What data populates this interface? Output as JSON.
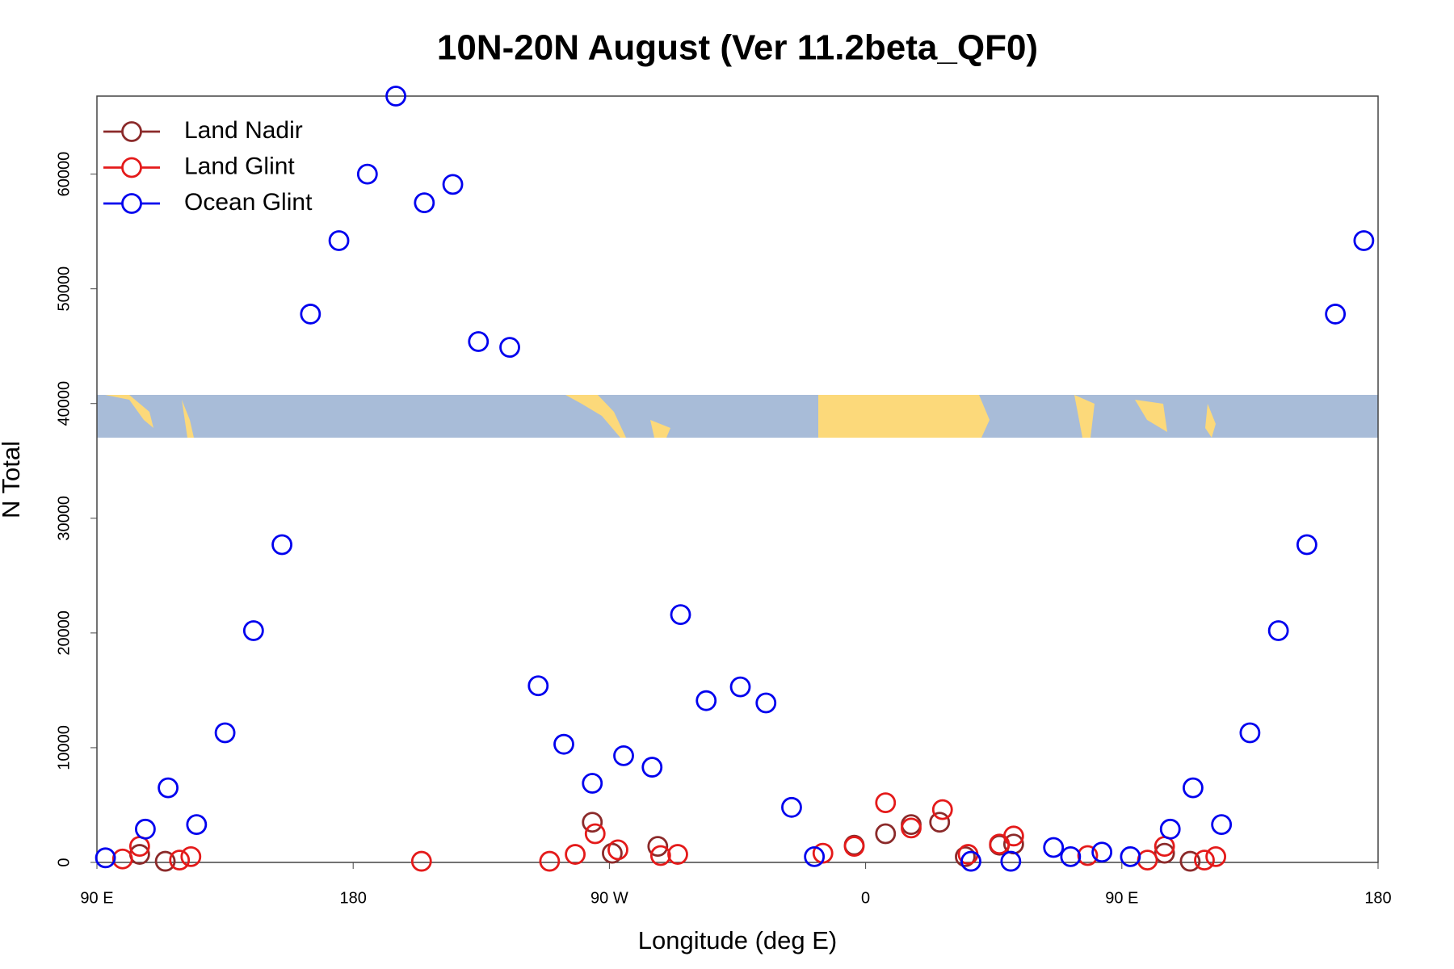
{
  "chart_data": {
    "type": "scatter",
    "title": "10N-20N August (Ver 11.2beta_QF0)",
    "x_label": "Longitude (deg E)",
    "y_label": "N Total",
    "xlim": [
      90,
      540
    ],
    "ylim": [
      0,
      66800
    ],
    "xticks": [
      {
        "value": 90,
        "label": "90 E"
      },
      180,
      {
        "value": 270,
        "label": "90 W"
      },
      {
        "value": 360,
        "label": "0"
      },
      {
        "value": 450,
        "label": "90 E"
      },
      {
        "value": 540,
        "label": "180"
      }
    ],
    "yticks": [
      0,
      10000,
      20000,
      30000,
      40000,
      50000,
      60000
    ],
    "legend": "top-left",
    "series": [
      {
        "name": "Land Nadir",
        "color": "#8b2a2a",
        "x": [
          105,
          114,
          264,
          271,
          287,
          356,
          367,
          376,
          386,
          395,
          407,
          412,
          465,
          474
        ],
        "values": [
          700,
          100,
          3500,
          800,
          1400,
          1500,
          2500,
          3300,
          3500,
          500,
          1500,
          1600,
          800,
          100
        ]
      },
      {
        "name": "Land Glint",
        "color": "#e41a1a",
        "x": [
          99,
          105,
          119,
          123,
          204,
          249,
          258,
          265,
          273,
          288,
          294,
          345,
          356,
          367,
          376,
          387,
          396,
          407,
          412,
          438,
          459,
          465,
          479,
          483
        ],
        "values": [
          300,
          1400,
          200,
          500,
          100,
          100,
          700,
          2500,
          1100,
          600,
          700,
          800,
          1400,
          5200,
          3000,
          4600,
          700,
          1600,
          2300,
          600,
          200,
          1400,
          200,
          500
        ]
      },
      {
        "name": "Ocean Glint",
        "color": "#0000ee",
        "x": [
          93,
          107,
          115,
          125,
          135,
          145,
          155,
          165,
          175,
          185,
          195,
          205,
          215,
          224,
          235,
          245,
          254,
          264,
          275,
          285,
          295,
          304,
          316,
          325,
          334,
          342,
          397,
          411,
          426,
          432,
          443,
          453,
          467,
          475,
          485,
          495,
          505,
          515,
          525,
          535
        ],
        "values": [
          400,
          2900,
          6500,
          3300,
          11300,
          20200,
          27700,
          47800,
          54200,
          60000,
          66800,
          57500,
          59100,
          45400,
          44900,
          15400,
          10300,
          6900,
          9300,
          8300,
          21600,
          14100,
          15300,
          13900,
          4800,
          500,
          100,
          100,
          1300,
          500,
          900,
          500,
          2900,
          6500,
          3300,
          11300,
          20200,
          27700,
          47800,
          54200
        ]
      }
    ]
  }
}
